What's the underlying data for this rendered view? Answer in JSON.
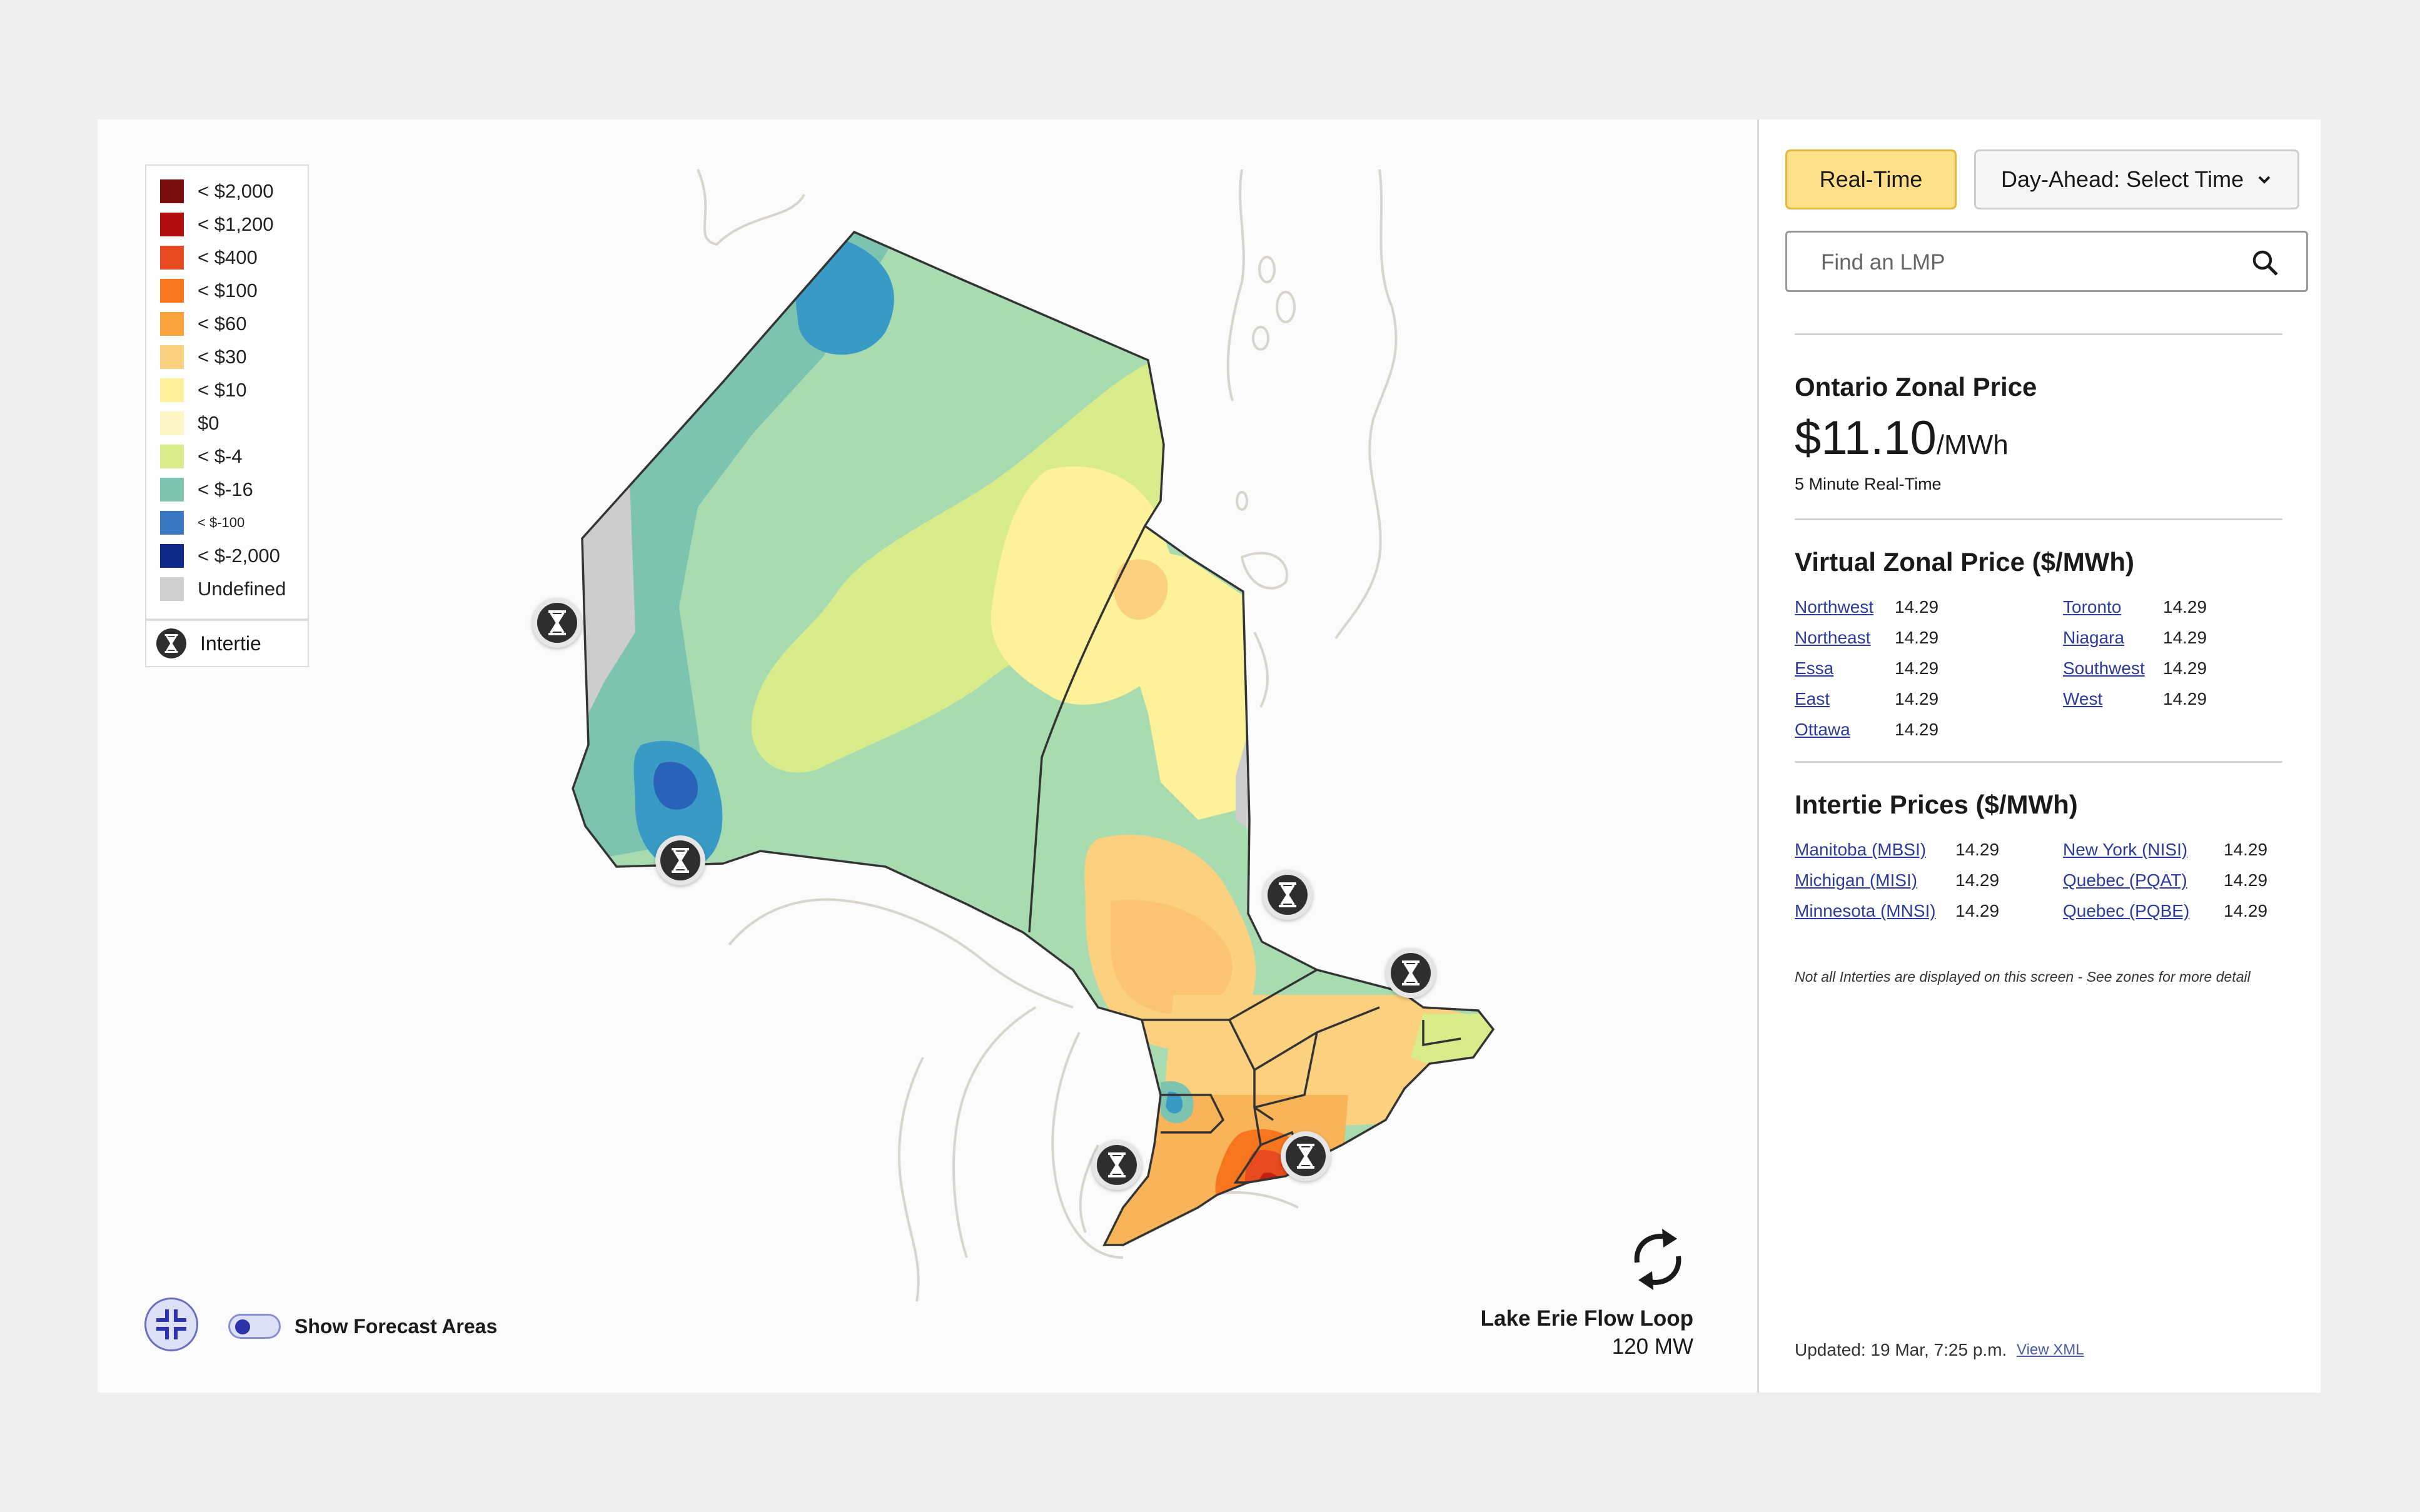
{
  "legend": {
    "items": [
      {
        "label": "< $2,000",
        "color": "#7a0d0d"
      },
      {
        "label": "< $1,200",
        "color": "#b30e0e"
      },
      {
        "label": "< $400",
        "color": "#e84a1f"
      },
      {
        "label": "< $100",
        "color": "#f7751d"
      },
      {
        "label": "< $60",
        "color": "#f9a33d"
      },
      {
        "label": "< $30",
        "color": "#fbd07e"
      },
      {
        "label": "< $10",
        "color": "#fdf19a"
      },
      {
        "label": "$0",
        "color": "#fef7c5"
      },
      {
        "label": "< $-4",
        "color": "#d8ec8c"
      },
      {
        "label": "< $-16",
        "color": "#7cc4b0"
      },
      {
        "label": "< $-100",
        "color": "#3a78c4"
      },
      {
        "label": "< $-2,000",
        "color": "#0e2a86"
      },
      {
        "label": "Undefined",
        "color": "#cfcfcf"
      }
    ],
    "intertie_label": "Intertie"
  },
  "map": {
    "forecast_toggle_label": "Show Forecast Areas",
    "forecast_toggle_on": false,
    "flow_loop_title": "Lake Erie Flow Loop",
    "flow_loop_value": "120 MW"
  },
  "controls": {
    "realtime_label": "Real-Time",
    "dayahead_label": "Day-Ahead: Select Time",
    "search_placeholder": "Find an LMP"
  },
  "zonal_price": {
    "title": "Ontario Zonal Price",
    "value": "$11.10",
    "unit": "/MWh",
    "note": "5 Minute Real-Time"
  },
  "virtual_zonal": {
    "title": "Virtual Zonal Price ($/MWh)",
    "left": [
      {
        "name": "Northwest",
        "value": "14.29"
      },
      {
        "name": "Northeast",
        "value": "14.29"
      },
      {
        "name": "Essa",
        "value": "14.29"
      },
      {
        "name": "East",
        "value": "14.29"
      },
      {
        "name": "Ottawa",
        "value": "14.29"
      }
    ],
    "right": [
      {
        "name": "Toronto",
        "value": "14.29"
      },
      {
        "name": "Niagara",
        "value": "14.29"
      },
      {
        "name": "Southwest",
        "value": "14.29"
      },
      {
        "name": "West",
        "value": "14.29"
      }
    ]
  },
  "intertie_prices": {
    "title": "Intertie Prices ($/MWh)",
    "left": [
      {
        "name": "Manitoba (MBSI)",
        "value": "14.29"
      },
      {
        "name": "Michigan (MISI)",
        "value": "14.29"
      },
      {
        "name": "Minnesota (MNSI)",
        "value": "14.29"
      }
    ],
    "right": [
      {
        "name": "New York (NISI)",
        "value": "14.29"
      },
      {
        "name": "Quebec (PQAT)",
        "value": "14.29"
      },
      {
        "name": "Quebec (PQBE)",
        "value": "14.29"
      }
    ],
    "footnote": "Not all Interties are displayed on this screen - See zones for more detail"
  },
  "footer": {
    "updated": "Updated: 19 Mar, 7:25 p.m.",
    "view_xml": "View XML"
  }
}
